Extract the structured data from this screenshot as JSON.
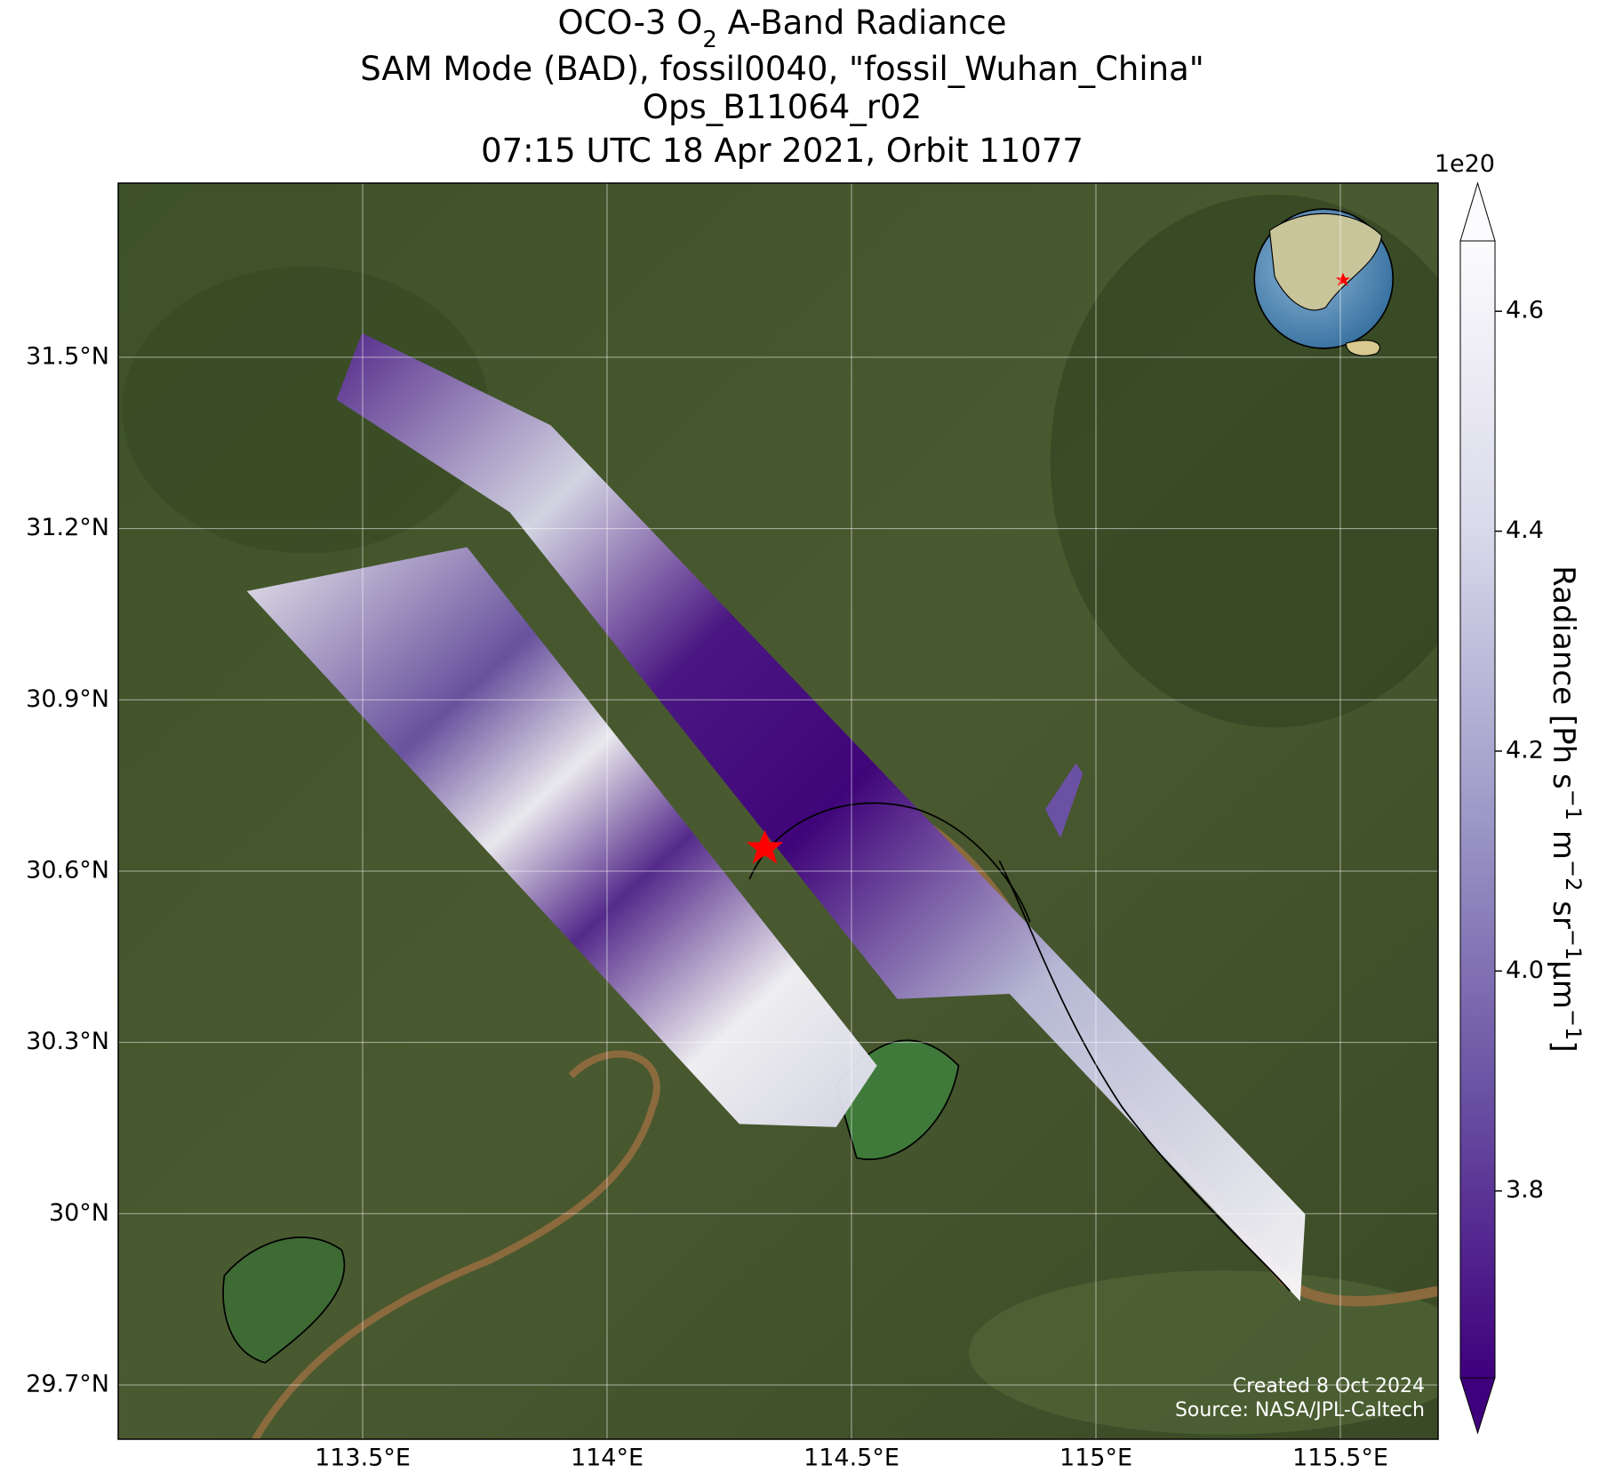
{
  "title": {
    "line1": [
      "OCO-3 O",
      "2",
      " A-Band Radiance"
    ],
    "line2": "SAM Mode (BAD), fossil0040, \"fossil_Wuhan_China\"",
    "line3": "Ops_B11064_r02",
    "line4": "07:15 UTC 18 Apr 2021, Orbit 11077"
  },
  "map": {
    "xlim": [
      113.0,
      115.7
    ],
    "ylim": [
      29.605,
      31.805
    ],
    "grid": true,
    "xticks": [
      {
        "value": 113.5,
        "label": "113.5°E"
      },
      {
        "value": 114,
        "label": "114°E"
      },
      {
        "value": 114.5,
        "label": "114.5°E"
      },
      {
        "value": 115,
        "label": "115°E"
      },
      {
        "value": 115.5,
        "label": "115.5°E"
      }
    ],
    "yticks": [
      {
        "value": 29.7,
        "label": "29.7°N"
      },
      {
        "value": 30,
        "label": "30°N"
      },
      {
        "value": 30.3,
        "label": "30.3°N"
      },
      {
        "value": 30.6,
        "label": "30.6°N"
      },
      {
        "value": 30.9,
        "label": "30.9°N"
      },
      {
        "value": 31.2,
        "label": "31.2°N"
      },
      {
        "value": 31.5,
        "label": "31.5°N"
      }
    ]
  },
  "colorbar": {
    "clim": [
      3.63,
      4.664
    ],
    "ticks": [
      3.8,
      {
        "value": 4,
        "label": "4.0"
      },
      4.2,
      4.4,
      4.6
    ],
    "exponent": "1e20",
    "label": [
      "Radiance [Ph s",
      "−1",
      " m",
      "−2",
      " sr",
      "−1",
      "µm",
      "−1",
      "]"
    ]
  },
  "credits": [
    "Created 8 Oct 2024",
    "Source: NASA/JPL-Caltech"
  ]
}
